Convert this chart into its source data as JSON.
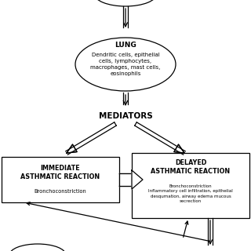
{
  "bg_color": "#ffffff",
  "lung_title": "LUNG",
  "lung_text": "Dendritic cells, epithelial\ncells, lymphocytes,\nmacrophages, mast cells,\neosinophils",
  "mediators_label": "MEDIATORS",
  "imm_title": "IMMEDIATE\nASTHMATIC REACTION",
  "imm_sub": "Bronchoconstriction",
  "del_title": "DELAYED\nASTHMATIC REACTION",
  "del_sub": "Bronchoconstriction\nInflammatory cell infiltration, epithelial\ndesqumation, airway edema mucous\nsecrection"
}
